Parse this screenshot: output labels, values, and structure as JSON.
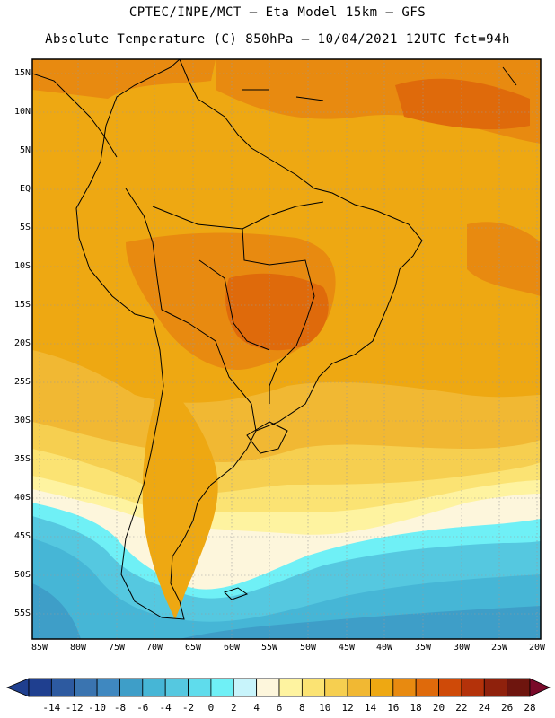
{
  "header": {
    "line1": "CPTEC/INPE/MCT –  Eta Model 15km – GFS",
    "line2": "Absolute Temperature (C) 850hPa – 10/04/2021 12UTC fct=94h"
  },
  "map": {
    "region": "South America",
    "lat_labels": [
      "15N",
      "10N",
      "5N",
      "EQ",
      "5S",
      "10S",
      "15S",
      "20S",
      "25S",
      "30S",
      "35S",
      "40S",
      "45S",
      "50S",
      "55S"
    ],
    "lon_labels": [
      "85W",
      "80W",
      "75W",
      "70W",
      "65W",
      "60W",
      "55W",
      "50W",
      "45W",
      "40W",
      "35W",
      "30W",
      "25W",
      "20W"
    ]
  },
  "colorbar": {
    "labels": [
      "-14",
      "-12",
      "-10",
      "-8",
      "-6",
      "-4",
      "-2",
      "0",
      "2",
      "4",
      "6",
      "8",
      "10",
      "12",
      "14",
      "16",
      "18",
      "20",
      "22",
      "24",
      "26",
      "28"
    ],
    "colors": [
      "#1f3f8f",
      "#2d5aa0",
      "#3a74b0",
      "#3f88c0",
      "#3e9ec8",
      "#46b6d6",
      "#55c8e0",
      "#5fdcec",
      "#6ff0f6",
      "#c8f4fb",
      "#fdf6dc",
      "#fef3a0",
      "#fbe373",
      "#f6cf50",
      "#f1b833",
      "#eea812",
      "#e88a10",
      "#df6a0b",
      "#cf4a08",
      "#b4320a",
      "#8f210c",
      "#6e150e"
    ],
    "under_color": "#1f3f8f",
    "over_color": "#7a0a2a"
  }
}
